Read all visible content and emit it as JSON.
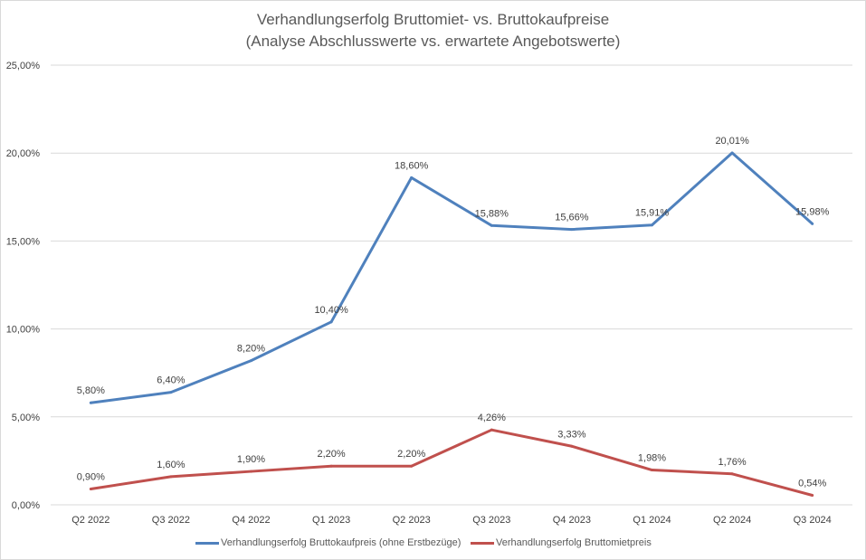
{
  "chart_data": {
    "type": "line",
    "title": "Verhandlungserfolg  Bruttomiet- vs. Bruttokaufpreise",
    "subtitle": "(Analyse Abschlusswerte vs. erwartete Angebotswerte)",
    "categories": [
      "Q2 2022",
      "Q3 2022",
      "Q4 2022",
      "Q1 2023",
      "Q2 2023",
      "Q3 2023",
      "Q4 2023",
      "Q1 2024",
      "Q2 2024",
      "Q3 2024"
    ],
    "y_ticks": [
      "0,00%",
      "5,00%",
      "10,00%",
      "15,00%",
      "20,00%",
      "25,00%"
    ],
    "ylim": [
      0,
      25
    ],
    "grid": true,
    "legend_position": "bottom",
    "series": [
      {
        "name": "Verhandlungserfolg Bruttokaufpreis (ohne Erstbezüge)",
        "color": "#4f81bd",
        "values": [
          5.8,
          6.4,
          8.2,
          10.4,
          18.6,
          15.88,
          15.66,
          15.91,
          20.01,
          15.98
        ],
        "labels": [
          "5,80%",
          "6,40%",
          "8,20%",
          "10,40%",
          "18,60%",
          "15,88%",
          "15,66%",
          "15,91%",
          "20,01%",
          "15,98%"
        ]
      },
      {
        "name": "Verhandlungserfolg Bruttomietpreis",
        "color": "#c0504d",
        "values": [
          0.9,
          1.6,
          1.9,
          2.2,
          2.2,
          4.26,
          3.33,
          1.98,
          1.76,
          0.54
        ],
        "labels": [
          "0,90%",
          "1,60%",
          "1,90%",
          "2,20%",
          "2,20%",
          "4,26%",
          "3,33%",
          "1,98%",
          "1,76%",
          "0,54%"
        ]
      }
    ]
  }
}
